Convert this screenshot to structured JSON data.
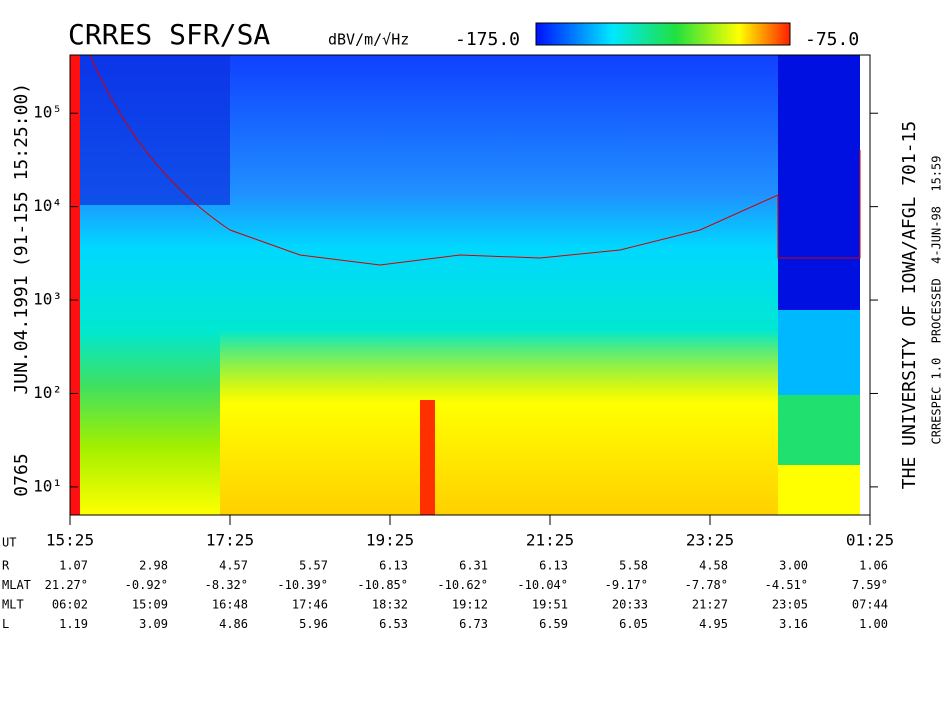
{
  "chart_data": {
    "type": "spectrogram",
    "title": "CRRES SFR/SA",
    "units": "dBV/m/√Hz",
    "clim": [
      {
        "value": -175,
        "label": "-175.0"
      },
      {
        "value": -75,
        "label": "-75.0"
      }
    ],
    "ylim": [
      5,
      420000
    ],
    "log_y": true,
    "yticks": [
      {
        "value": 10,
        "label": "10¹"
      },
      {
        "value": 100,
        "label": "10²"
      },
      {
        "value": 1000,
        "label": "10³"
      },
      {
        "value": 10000,
        "label": "10⁴"
      },
      {
        "value": 100000,
        "label": "10⁵"
      }
    ],
    "xticks": [
      "15:25",
      "17:25",
      "19:25",
      "21:25",
      "23:25",
      "01:25"
    ],
    "left_labels": [
      "0765",
      "JUN.04.1991",
      "(91-155 15:25:00)"
    ],
    "right_labels": [
      "THE UNIVERSITY OF IOWA/AFGL 701-15",
      "CRRESPEC 1.0  PROCESSED  4-JUN-98  15:59"
    ],
    "ephemeris": {
      "ut_label": "UT",
      "rows": [
        {
          "label": "R",
          "values": [
            "1.07",
            "2.98",
            "4.57",
            "5.57",
            "6.13",
            "6.31",
            "6.13",
            "5.58",
            "4.58",
            "3.00",
            "1.06"
          ]
        },
        {
          "label": "MLAT",
          "values": [
            "21.27°",
            "-0.92°",
            "-8.32°",
            "-10.39°",
            "-10.85°",
            "-10.62°",
            "-10.04°",
            "-9.17°",
            "-7.78°",
            "-4.51°",
            "7.59°"
          ]
        },
        {
          "label": "MLT",
          "values": [
            "06:02",
            "15:09",
            "16:48",
            "17:46",
            "18:32",
            "19:12",
            "19:51",
            "20:33",
            "21:27",
            "23:05",
            "07:44"
          ]
        },
        {
          "label": "L",
          "values": [
            "1.19",
            "3.09",
            "4.86",
            "5.96",
            "6.53",
            "6.73",
            "6.59",
            "6.05",
            "4.95",
            "3.16",
            "1.00"
          ]
        }
      ]
    }
  }
}
